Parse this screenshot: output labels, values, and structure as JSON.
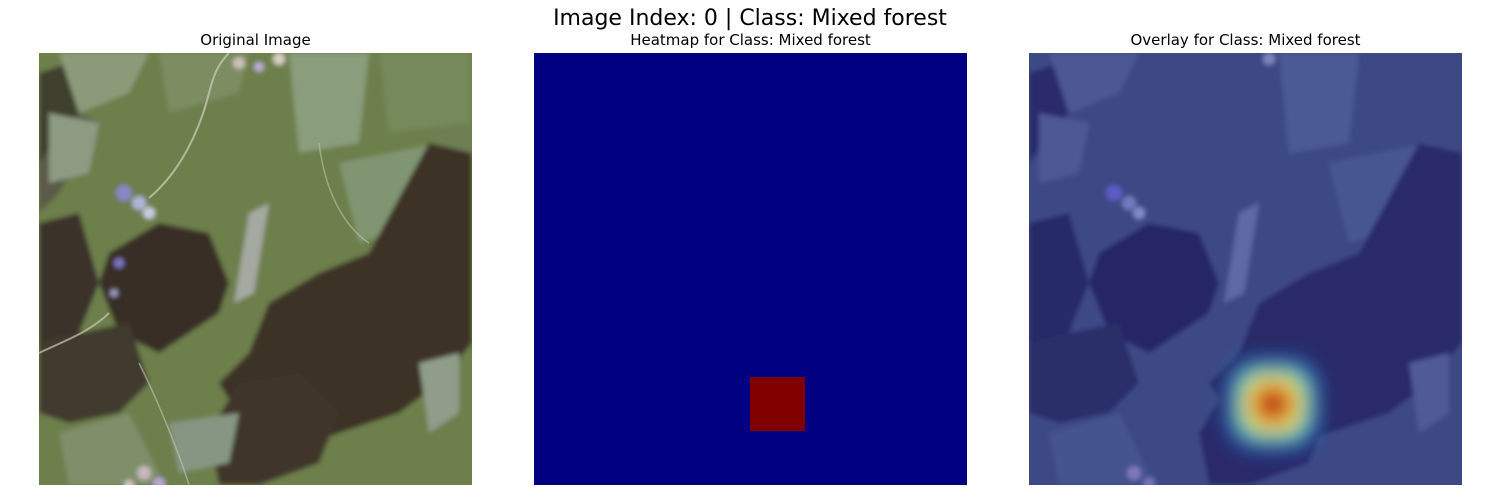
{
  "figure": {
    "suptitle": "Image Index: 0 | Class: Mixed forest"
  },
  "panels": [
    {
      "title": "Original Image"
    },
    {
      "title": "Heatmap for Class: Mixed forest"
    },
    {
      "title": "Overlay for Class: Mixed forest"
    }
  ],
  "colors": {
    "heatmap_background": "#000080",
    "heatmap_hotspot": "#800000",
    "overlay_tint": "#303e8c"
  }
}
